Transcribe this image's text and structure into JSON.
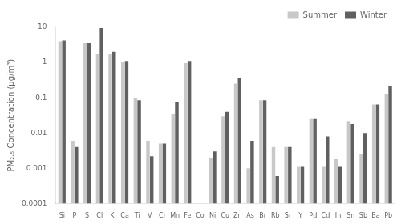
{
  "chart_data": {
    "type": "bar",
    "categories": [
      "Si",
      "P",
      "S",
      "Cl",
      "K",
      "Ca",
      "Ti",
      "V",
      "Cr",
      "Mn",
      "Fe",
      "Co",
      "Ni",
      "Cu",
      "Zn",
      "As",
      "Br",
      "Rb",
      "Sr",
      "Y",
      "Pd",
      "Cd",
      "In",
      "Sn",
      "Sb",
      "Ba",
      "Pb"
    ],
    "series": [
      {
        "name": "Summer",
        "color": "#c8c8c8",
        "values": [
          4.0,
          0.006,
          3.5,
          1.7,
          1.7,
          1.0,
          0.1,
          0.006,
          0.005,
          0.035,
          0.95,
          0.0001,
          0.002,
          0.03,
          0.25,
          0.001,
          0.085,
          0.004,
          0.004,
          0.0011,
          0.025,
          0.0011,
          0.0018,
          0.022,
          0.0025,
          0.065,
          0.13
        ]
      },
      {
        "name": "Winter",
        "color": "#606060",
        "values": [
          4.2,
          0.004,
          3.5,
          9.5,
          2.0,
          1.1,
          0.085,
          0.0022,
          0.005,
          0.075,
          1.1,
          0.0001,
          0.003,
          0.04,
          0.37,
          0.006,
          0.085,
          0.0006,
          0.004,
          0.0011,
          0.025,
          0.008,
          0.0011,
          0.018,
          0.01,
          0.065,
          0.22
        ]
      }
    ],
    "y_label": "PM₂.₅ Concentration (μg/m³)",
    "log": "y",
    "ylim": [
      0.0001,
      10
    ],
    "yticks": [
      0.0001,
      0.001,
      0.01,
      0.1,
      1,
      10
    ],
    "grid": false,
    "legend": "top"
  }
}
